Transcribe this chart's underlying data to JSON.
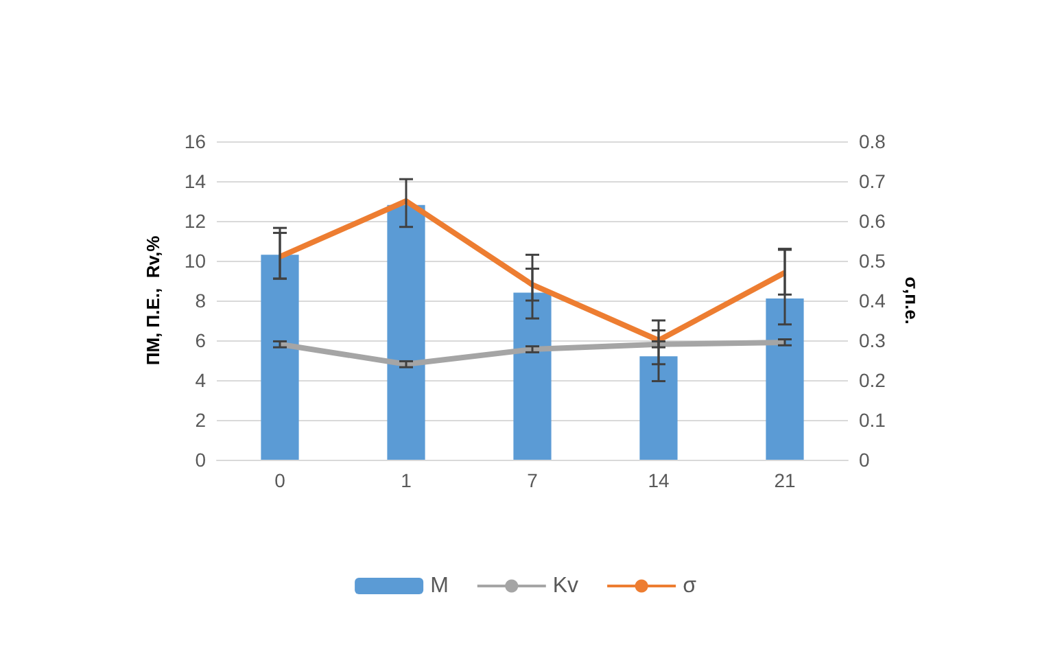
{
  "chart_data": {
    "type": "bar",
    "categories": [
      "0",
      "1",
      "7",
      "14",
      "21"
    ],
    "ylabel": "ПМ, П.Е.,  Rv,%",
    "y2label": "σ,п.е.",
    "ylim": [
      0,
      16
    ],
    "yticks": [
      0,
      2,
      4,
      6,
      8,
      10,
      12,
      14,
      16
    ],
    "y2lim": [
      0,
      0.8
    ],
    "y2ticks": [
      0,
      0.1,
      0.2,
      0.3,
      0.4,
      0.5,
      0.6,
      0.7,
      0.8
    ],
    "grid": "y",
    "legend": "bottom",
    "series": [
      {
        "name": "M",
        "color": "#5b9bd5",
        "values": [
          10.3,
          12.8,
          8.4,
          5.2,
          8.1
        ],
        "errors": [
          [
            9.1,
            11.65
          ],
          [
            11.7,
            14.1
          ],
          [
            7.1,
            10.3
          ],
          [
            3.95,
            7.0
          ],
          [
            6.8,
            10.55
          ]
        ]
      },
      {
        "name": "Kv",
        "type": "line",
        "color": "#a5a5a5",
        "values": [
          5.8,
          4.8,
          5.55,
          5.8,
          5.9
        ],
        "errors": [
          0.15,
          0.15,
          0.15,
          0.15,
          0.15
        ]
      },
      {
        "name": "σ",
        "type": "line",
        "axis": "y2",
        "color": "#ed7d31",
        "values": [
          0.51,
          0.65,
          0.44,
          0.3,
          0.47
        ],
        "errors": [
          [
            0.455,
            0.57
          ],
          null,
          [
            0.4,
            0.48
          ],
          [
            0.24,
            0.325
          ],
          [
            0.415,
            0.53
          ]
        ]
      }
    ]
  }
}
